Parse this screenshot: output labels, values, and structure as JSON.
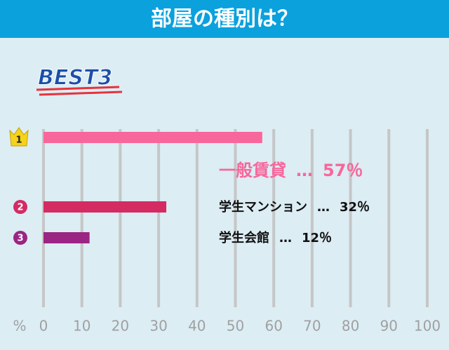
{
  "chart_data": {
    "type": "bar",
    "title": "部屋の種別は？",
    "badge": "BEST3",
    "ranks": [
      "1",
      "2",
      "3"
    ],
    "categories": [
      "一般賃貸",
      "学生マンション",
      "学生会館"
    ],
    "values": [
      57,
      32,
      12
    ],
    "value_labels": [
      "57％",
      "32％",
      "12％"
    ],
    "separator": "…",
    "colors": [
      "#f7679b",
      "#d42b63",
      "#9b2583"
    ],
    "label_colors": [
      "#f7679b",
      "#111111",
      "#111111"
    ],
    "x_unit": "%",
    "xlim": [
      0,
      100
    ],
    "xticks": [
      0,
      10,
      20,
      30,
      40,
      50,
      60,
      70,
      80,
      90,
      100
    ],
    "grid": true
  }
}
